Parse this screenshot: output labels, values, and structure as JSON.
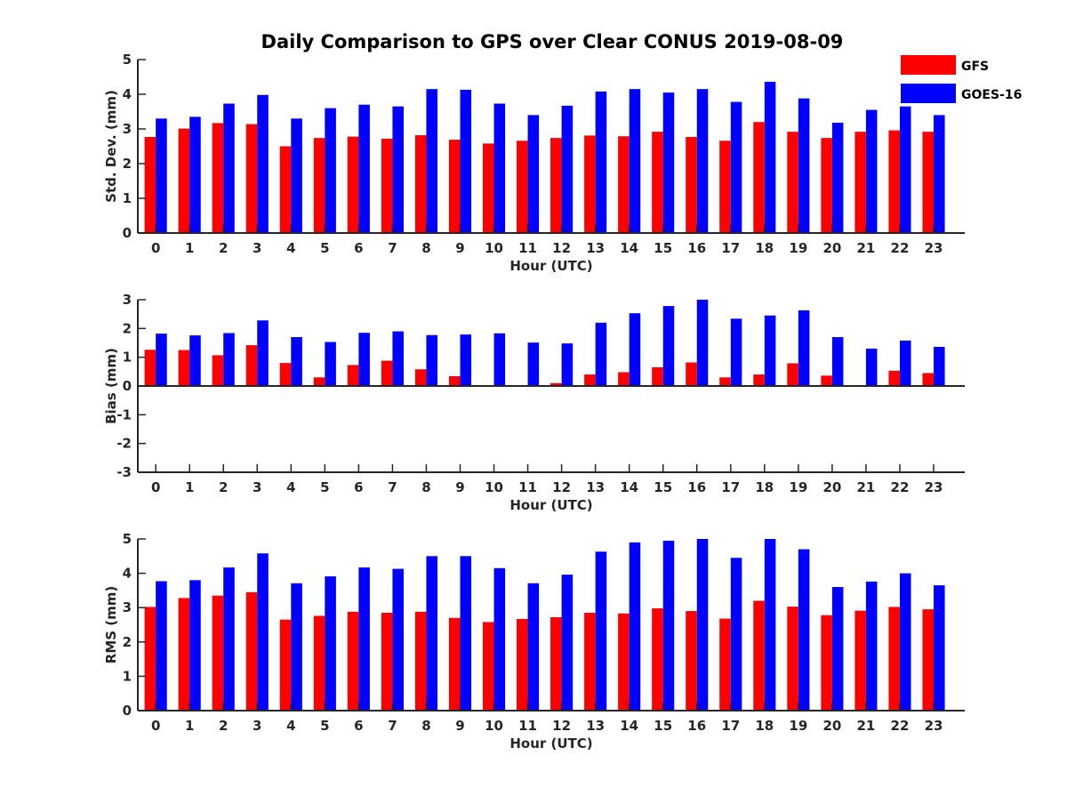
{
  "chart_data": {
    "type": "bar",
    "title": "Daily Comparison to GPS over Clear CONUS 2019-08-09",
    "categories": [
      "0",
      "1",
      "2",
      "3",
      "4",
      "5",
      "6",
      "7",
      "8",
      "9",
      "10",
      "11",
      "12",
      "13",
      "14",
      "15",
      "16",
      "17",
      "18",
      "19",
      "20",
      "21",
      "22",
      "23"
    ],
    "legend": {
      "placement": "top-right",
      "entries": [
        {
          "name": "GFS",
          "color": "#ff0000"
        },
        {
          "name": "GOES-16",
          "color": "#0000ff"
        }
      ]
    },
    "panels": [
      {
        "key": "std",
        "ylabel": "Std. Dev. (mm)",
        "xlabel": "Hour (UTC)",
        "ylim": [
          0,
          5
        ],
        "yticks": [
          "0",
          "1",
          "2",
          "3",
          "4",
          "5"
        ],
        "series": [
          {
            "name": "GFS",
            "values": [
              2.77,
              3.01,
              3.17,
              3.14,
              2.5,
              2.74,
              2.78,
              2.72,
              2.82,
              2.69,
              2.58,
              2.66,
              2.74,
              2.81,
              2.79,
              2.92,
              2.77,
              2.66,
              3.2,
              2.92,
              2.74,
              2.92,
              2.96,
              2.92
            ]
          },
          {
            "name": "GOES-16",
            "values": [
              3.3,
              3.35,
              3.73,
              3.98,
              3.3,
              3.6,
              3.7,
              3.65,
              4.15,
              4.13,
              3.73,
              3.4,
              3.67,
              4.08,
              4.15,
              4.05,
              4.15,
              3.78,
              4.36,
              3.88,
              3.18,
              3.55,
              3.65,
              3.4
            ]
          }
        ]
      },
      {
        "key": "bias",
        "ylabel": "Bias (mm)",
        "xlabel": "Hour (UTC)",
        "ylim": [
          -3,
          3
        ],
        "yticks": [
          "-3",
          "-2",
          "-1",
          "0",
          "1",
          "2",
          "3"
        ],
        "series": [
          {
            "name": "GFS",
            "values": [
              1.26,
              1.25,
              1.07,
              1.42,
              0.8,
              0.3,
              0.73,
              0.88,
              0.58,
              0.34,
              0.03,
              0.03,
              0.1,
              0.4,
              0.48,
              0.65,
              0.82,
              0.3,
              0.4,
              0.79,
              0.36,
              0.03,
              0.53,
              0.45
            ]
          },
          {
            "name": "GOES-16",
            "values": [
              1.82,
              1.76,
              1.84,
              2.28,
              1.7,
              1.53,
              1.85,
              1.9,
              1.77,
              1.79,
              1.83,
              1.51,
              1.48,
              2.2,
              2.53,
              2.78,
              3.0,
              2.34,
              2.45,
              2.63,
              1.7,
              1.3,
              1.58,
              1.36
            ]
          }
        ]
      },
      {
        "key": "rms",
        "ylabel": "RMS (mm)",
        "xlabel": "Hour (UTC)",
        "ylim": [
          0,
          5
        ],
        "yticks": [
          "0",
          "1",
          "2",
          "3",
          "4",
          "5"
        ],
        "series": [
          {
            "name": "GFS",
            "values": [
              3.02,
              3.28,
              3.35,
              3.45,
              2.65,
              2.76,
              2.88,
              2.85,
              2.88,
              2.7,
              2.58,
              2.67,
              2.72,
              2.85,
              2.83,
              2.98,
              2.9,
              2.68,
              3.2,
              3.03,
              2.78,
              2.91,
              3.02,
              2.95
            ]
          },
          {
            "name": "GOES-16",
            "values": [
              3.77,
              3.8,
              4.17,
              4.58,
              3.71,
              3.91,
              4.17,
              4.13,
              4.5,
              4.5,
              4.15,
              3.71,
              3.96,
              4.63,
              4.9,
              4.95,
              5.0,
              4.45,
              5.0,
              4.7,
              3.6,
              3.76,
              4.0,
              3.65
            ]
          }
        ]
      }
    ]
  }
}
